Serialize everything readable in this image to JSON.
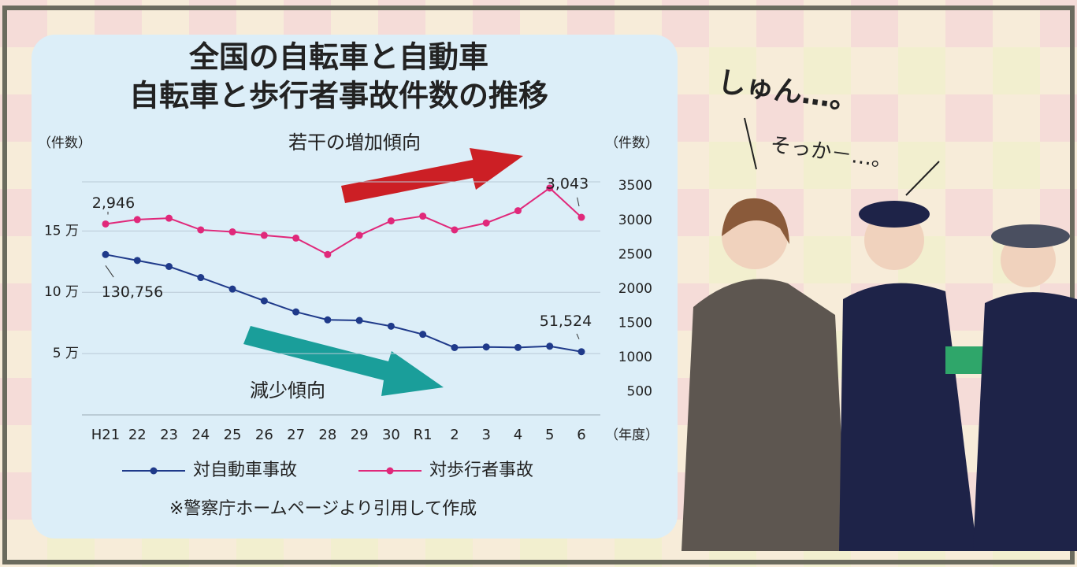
{
  "chart_data": {
    "type": "line",
    "title": "全国の自転車と自動車",
    "subtitle": "自転車と歩行者事故件数の推移",
    "y_label": "（件数）",
    "y2_label": "（件数）",
    "x_label": "（年度）",
    "annotations": [
      "若干の増加傾向",
      "減少傾向"
    ],
    "source": "※警察庁ホームページより引用して作成",
    "categories": [
      "H21",
      "22",
      "23",
      "24",
      "25",
      "26",
      "27",
      "28",
      "29",
      "30",
      "R1",
      "2",
      "3",
      "4",
      "5",
      "6"
    ],
    "series": [
      {
        "name": "対自動車事故",
        "color": "#1f3a8a",
        "values": [
          130756,
          125900,
          121000,
          112000,
          102600,
          93000,
          84000,
          77500,
          77000,
          72300,
          65700,
          54900,
          55400,
          55000,
          56000,
          51524
        ],
        "value_labels": [
          "130,756",
          null,
          null,
          null,
          null,
          null,
          null,
          null,
          null,
          null,
          null,
          null,
          null,
          null,
          null,
          "51,524"
        ]
      },
      {
        "name": "対歩行者事故",
        "color": "#e0287a",
        "axis": "y2",
        "values": [
          2946,
          3010,
          3030,
          2860,
          2830,
          2780,
          2740,
          2500,
          2780,
          2990,
          3060,
          2860,
          2960,
          3140,
          3470,
          3043
        ],
        "value_labels": [
          "2,946",
          null,
          null,
          null,
          null,
          null,
          null,
          null,
          null,
          null,
          null,
          null,
          null,
          null,
          null,
          "3,043"
        ]
      }
    ],
    "ylim": [
      0,
      190000
    ],
    "yticks": [
      {
        "value": 50000,
        "label": "5 万"
      },
      {
        "value": 100000,
        "label": "10 万"
      },
      {
        "value": 150000,
        "label": "15 万"
      }
    ],
    "y2lim": [
      160,
      3560
    ],
    "y2ticks": [
      500,
      1000,
      1500,
      2000,
      2500,
      3000,
      3500
    ],
    "grid": true
  },
  "speech": [
    "しゅん…。",
    "そっか－…。"
  ]
}
